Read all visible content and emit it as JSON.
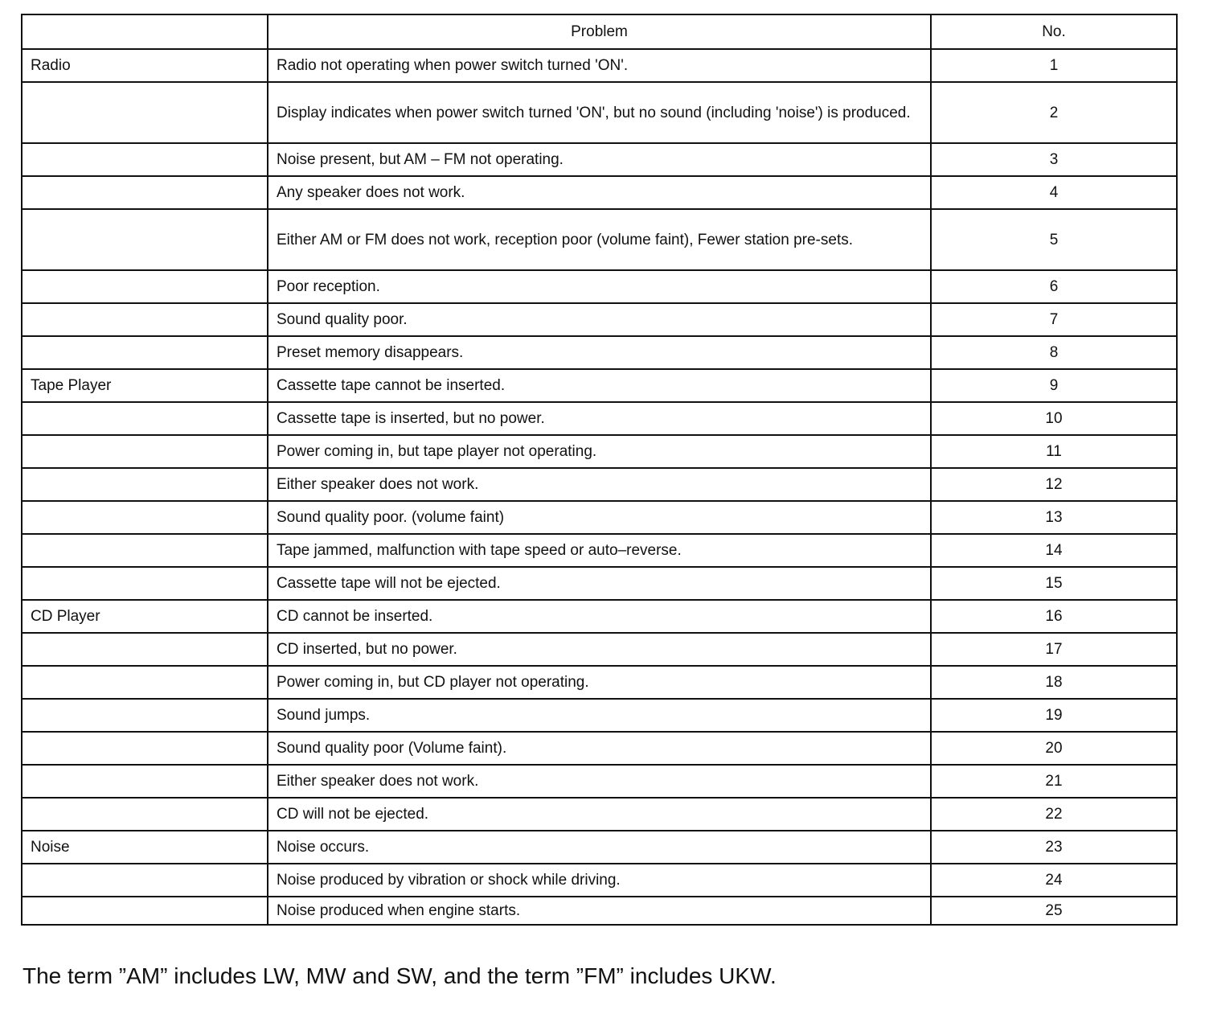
{
  "header": {
    "category": "",
    "problem": "Problem",
    "no": "No."
  },
  "rows": [
    {
      "category": "Radio",
      "problem": "Radio not operating when power switch turned 'ON'.",
      "no": "1"
    },
    {
      "category": "",
      "problem": "Display indicates when power switch turned 'ON', but no sound (including 'noise') is produced.",
      "no": "2",
      "tall": true
    },
    {
      "category": "",
      "problem": "Noise present, but AM – FM not operating.",
      "no": "3"
    },
    {
      "category": "",
      "problem": "Any speaker does not work.",
      "no": "4"
    },
    {
      "category": "",
      "problem": "Either AM or FM does not work, reception poor (volume faint), Fewer station pre-sets.",
      "no": "5",
      "tall": true
    },
    {
      "category": "",
      "problem": "Poor reception.",
      "no": "6"
    },
    {
      "category": "",
      "problem": "Sound quality poor.",
      "no": "7"
    },
    {
      "category": "",
      "problem": "Preset memory disappears.",
      "no": "8"
    },
    {
      "category": "Tape Player",
      "problem": "Cassette tape cannot be inserted.",
      "no": "9"
    },
    {
      "category": "",
      "problem": "Cassette tape is inserted, but no power.",
      "no": "10"
    },
    {
      "category": "",
      "problem": "Power coming in, but tape player not operating.",
      "no": "11"
    },
    {
      "category": "",
      "problem": "Either speaker does not work.",
      "no": "12"
    },
    {
      "category": "",
      "problem": "Sound quality poor. (volume faint)",
      "no": "13"
    },
    {
      "category": "",
      "problem": "Tape jammed, malfunction with tape speed or auto–reverse.",
      "no": "14"
    },
    {
      "category": "",
      "problem": "Cassette tape will not be ejected.",
      "no": "15"
    },
    {
      "category": "CD Player",
      "problem": "CD cannot be inserted.",
      "no": "16"
    },
    {
      "category": "",
      "problem": "CD inserted, but no power.",
      "no": "17"
    },
    {
      "category": "",
      "problem": "Power coming in, but CD player not operating.",
      "no": "18"
    },
    {
      "category": "",
      "problem": "Sound jumps.",
      "no": "19"
    },
    {
      "category": "",
      "problem": "Sound quality poor (Volume faint).",
      "no": "20"
    },
    {
      "category": "",
      "problem": "Either speaker does not work.",
      "no": "21"
    },
    {
      "category": "",
      "problem": "CD will not be ejected.",
      "no": "22"
    },
    {
      "category": "Noise",
      "problem": "Noise occurs.",
      "no": "23"
    },
    {
      "category": "",
      "problem": "Noise produced by vibration or shock while driving.",
      "no": "24"
    },
    {
      "category": "",
      "problem": "Noise produced when engine starts.",
      "no": "25"
    }
  ],
  "footnote": "The term ”AM” includes LW, MW and SW, and the term ”FM” includes UKW."
}
